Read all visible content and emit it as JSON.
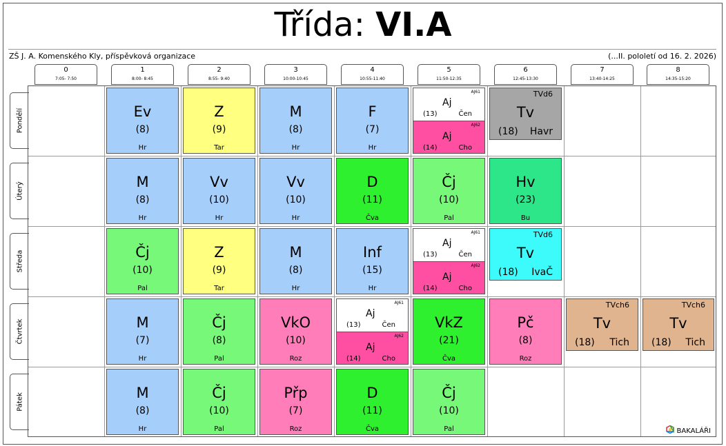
{
  "title": {
    "prefix": "Třída:",
    "class_name": "VI.A"
  },
  "school": "ZŠ J. A. Komenského Kly, příspěvková organizace",
  "term": "(...II. pololetí od 16. 2. 2026)",
  "periods": [
    {
      "num": "0",
      "time": "7:05- 7:50"
    },
    {
      "num": "1",
      "time": "8:00- 8:45"
    },
    {
      "num": "2",
      "time": "8:55- 9:40"
    },
    {
      "num": "3",
      "time": "10:00-10:45"
    },
    {
      "num": "4",
      "time": "10:55-11:40"
    },
    {
      "num": "5",
      "time": "11:50-12:35"
    },
    {
      "num": "6",
      "time": "12:45-13:30"
    },
    {
      "num": "7",
      "time": "13:40-14:25"
    },
    {
      "num": "8",
      "time": "14:35-15:20"
    }
  ],
  "days": [
    "Pondělí",
    "Úterý",
    "Středa",
    "Čtvrtek",
    "Pátek"
  ],
  "colors": {
    "blue": "#a6cefa",
    "yellow": "#ffff80",
    "green": "#78f878",
    "bright_green": "#2ef02e",
    "pink": "#ff7eb9",
    "magenta": "#ff4fa3",
    "gray": "#a6a6a6",
    "cyan": "#3dfbfb",
    "teal": "#2ee68a",
    "tan": "#dfb48f",
    "white": "#ffffff"
  },
  "lessons": [
    {
      "day": 0,
      "period": 1,
      "subject": "Ev",
      "room": "(8)",
      "teacher": "Hr",
      "color": "blue"
    },
    {
      "day": 0,
      "period": 2,
      "subject": "Z",
      "room": "(9)",
      "teacher": "Tar",
      "color": "yellow"
    },
    {
      "day": 0,
      "period": 3,
      "subject": "M",
      "room": "(8)",
      "teacher": "Hr",
      "color": "blue"
    },
    {
      "day": 0,
      "period": 4,
      "subject": "F",
      "room": "(7)",
      "teacher": "Hr",
      "color": "blue"
    },
    {
      "day": 0,
      "period": 5,
      "split": [
        {
          "group": "AJ61",
          "subject": "Aj",
          "room": "(13)",
          "teacher": "Čen",
          "color": "white"
        },
        {
          "group": "AJ62",
          "subject": "Aj",
          "room": "(14)",
          "teacher": "Cho",
          "color": "magenta"
        }
      ]
    },
    {
      "day": 0,
      "period": 6,
      "group": "TVd6",
      "subject": "Tv",
      "room": "(18)",
      "teacher": "Havr",
      "color": "gray",
      "short": true
    },
    {
      "day": 1,
      "period": 1,
      "subject": "M",
      "room": "(8)",
      "teacher": "Hr",
      "color": "blue"
    },
    {
      "day": 1,
      "period": 2,
      "subject": "Vv",
      "room": "(10)",
      "teacher": "Hr",
      "color": "blue"
    },
    {
      "day": 1,
      "period": 3,
      "subject": "Vv",
      "room": "(10)",
      "teacher": "Hr",
      "color": "blue"
    },
    {
      "day": 1,
      "period": 4,
      "subject": "D",
      "room": "(11)",
      "teacher": "Čva",
      "color": "bright_green"
    },
    {
      "day": 1,
      "period": 5,
      "subject": "Čj",
      "room": "(10)",
      "teacher": "Pal",
      "color": "green"
    },
    {
      "day": 1,
      "period": 6,
      "subject": "Hv",
      "room": "(23)",
      "teacher": "Bu",
      "color": "teal"
    },
    {
      "day": 2,
      "period": 1,
      "subject": "Čj",
      "room": "(10)",
      "teacher": "Pal",
      "color": "green"
    },
    {
      "day": 2,
      "period": 2,
      "subject": "Z",
      "room": "(9)",
      "teacher": "Tar",
      "color": "yellow"
    },
    {
      "day": 2,
      "period": 3,
      "subject": "M",
      "room": "(8)",
      "teacher": "Hr",
      "color": "blue"
    },
    {
      "day": 2,
      "period": 4,
      "subject": "Inf",
      "room": "(15)",
      "teacher": "Hr",
      "color": "blue"
    },
    {
      "day": 2,
      "period": 5,
      "split": [
        {
          "group": "AJ61",
          "subject": "Aj",
          "room": "(13)",
          "teacher": "Čen",
          "color": "white"
        },
        {
          "group": "AJ62",
          "subject": "Aj",
          "room": "(14)",
          "teacher": "Cho",
          "color": "magenta"
        }
      ]
    },
    {
      "day": 2,
      "period": 6,
      "group": "TVd6",
      "subject": "Tv",
      "room": "(18)",
      "teacher": "IvaČ",
      "color": "cyan",
      "short": true
    },
    {
      "day": 3,
      "period": 1,
      "subject": "M",
      "room": "(7)",
      "teacher": "Hr",
      "color": "blue"
    },
    {
      "day": 3,
      "period": 2,
      "subject": "Čj",
      "room": "(8)",
      "teacher": "Pal",
      "color": "green"
    },
    {
      "day": 3,
      "period": 3,
      "subject": "VkO",
      "room": "(10)",
      "teacher": "Roz",
      "color": "pink"
    },
    {
      "day": 3,
      "period": 4,
      "split": [
        {
          "group": "AJ61",
          "subject": "Aj",
          "room": "(13)",
          "teacher": "Čen",
          "color": "white"
        },
        {
          "group": "AJ62",
          "subject": "Aj",
          "room": "(14)",
          "teacher": "Cho",
          "color": "magenta"
        }
      ]
    },
    {
      "day": 3,
      "period": 5,
      "subject": "VkZ",
      "room": "(21)",
      "teacher": "Čva",
      "color": "bright_green"
    },
    {
      "day": 3,
      "period": 6,
      "subject": "Pč",
      "room": "(8)",
      "teacher": "Roz",
      "color": "pink"
    },
    {
      "day": 3,
      "period": 7,
      "group": "TVch6",
      "subject": "Tv",
      "room": "(18)",
      "teacher": "Tich",
      "color": "tan",
      "short": true
    },
    {
      "day": 3,
      "period": 8,
      "group": "TVch6",
      "subject": "Tv",
      "room": "(18)",
      "teacher": "Tich",
      "color": "tan",
      "short": true
    },
    {
      "day": 4,
      "period": 1,
      "subject": "M",
      "room": "(8)",
      "teacher": "Hr",
      "color": "blue"
    },
    {
      "day": 4,
      "period": 2,
      "subject": "Čj",
      "room": "(10)",
      "teacher": "Pal",
      "color": "green"
    },
    {
      "day": 4,
      "period": 3,
      "subject": "Přp",
      "room": "(7)",
      "teacher": "Roz",
      "color": "pink"
    },
    {
      "day": 4,
      "period": 4,
      "subject": "D",
      "room": "(11)",
      "teacher": "Čva",
      "color": "bright_green"
    },
    {
      "day": 4,
      "period": 5,
      "subject": "Čj",
      "room": "(10)",
      "teacher": "Pal",
      "color": "green"
    }
  ],
  "brand": {
    "name": "BAKALÁŘI",
    "icon": "bakalari-logo-icon"
  }
}
